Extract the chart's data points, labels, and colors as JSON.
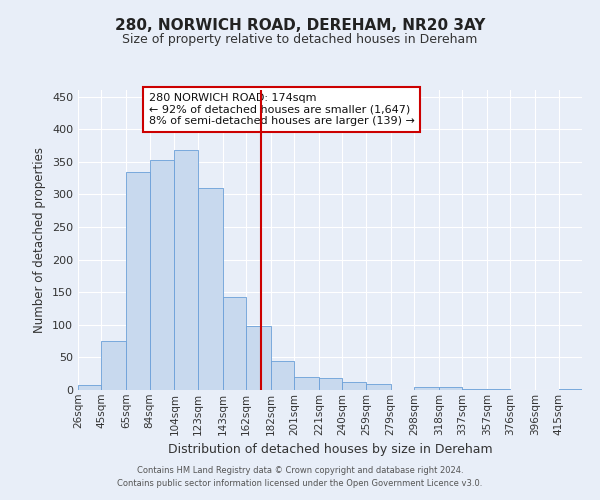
{
  "title": "280, NORWICH ROAD, DEREHAM, NR20 3AY",
  "subtitle": "Size of property relative to detached houses in Dereham",
  "xlabel": "Distribution of detached houses by size in Dereham",
  "ylabel": "Number of detached properties",
  "bar_color": "#c8d9ee",
  "bar_edge_color": "#6a9fd8",
  "background_color": "#e8eef8",
  "grid_color": "#ffffff",
  "annotation_box_text_line1": "280 NORWICH ROAD: 174sqm",
  "annotation_box_text_line2": "← 92% of detached houses are smaller (1,647)",
  "annotation_box_text_line3": "8% of semi-detached houses are larger (139) →",
  "vline_x": 174,
  "vline_color": "#cc0000",
  "categories": [
    "26sqm",
    "45sqm",
    "65sqm",
    "84sqm",
    "104sqm",
    "123sqm",
    "143sqm",
    "162sqm",
    "182sqm",
    "201sqm",
    "221sqm",
    "240sqm",
    "259sqm",
    "279sqm",
    "298sqm",
    "318sqm",
    "337sqm",
    "357sqm",
    "376sqm",
    "396sqm",
    "415sqm"
  ],
  "bin_edges": [
    26,
    45,
    65,
    84,
    104,
    123,
    143,
    162,
    182,
    201,
    221,
    240,
    259,
    279,
    298,
    318,
    337,
    357,
    376,
    396,
    415
  ],
  "bar_heights": [
    7,
    75,
    335,
    353,
    368,
    310,
    143,
    98,
    45,
    20,
    18,
    13,
    9,
    0,
    5,
    4,
    2,
    1,
    0,
    0,
    2
  ],
  "ylim": [
    0,
    460
  ],
  "yticks": [
    0,
    50,
    100,
    150,
    200,
    250,
    300,
    350,
    400,
    450
  ],
  "footer_line1": "Contains HM Land Registry data © Crown copyright and database right 2024.",
  "footer_line2": "Contains public sector information licensed under the Open Government Licence v3.0."
}
